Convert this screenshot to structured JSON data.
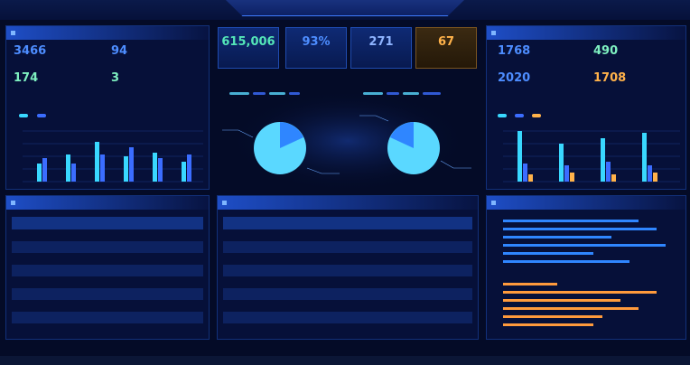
{
  "header": {
    "title": ""
  },
  "left_stats": {
    "title": "",
    "items": [
      {
        "label": "",
        "value": "3466",
        "color": "#4d8dff"
      },
      {
        "label": "",
        "value": "94",
        "color": "#4d8dff"
      },
      {
        "label": "",
        "value": "174",
        "color": "#7ef0c0"
      },
      {
        "label": "",
        "value": "3",
        "color": "#7ef0c0"
      }
    ]
  },
  "left_chart": {
    "legend": [
      "",
      ""
    ],
    "bar_colors": [
      "#39d8ff",
      "#3b6dff"
    ]
  },
  "kpis": [
    {
      "label": "",
      "value": "615,006",
      "color": "#54e6b8"
    },
    {
      "label": "",
      "value": "93%",
      "color": "#4d8dff"
    },
    {
      "label": "",
      "value": "271",
      "color": "#8fb4ff"
    },
    {
      "label": "",
      "value": "67",
      "color": "#ffb24a",
      "gold": true
    }
  ],
  "center_pies": [
    {
      "label": "",
      "slice_colors": [
        "#5ad8ff",
        "#2f86ff"
      ]
    },
    {
      "label": "",
      "slice_colors": [
        "#5ad8ff",
        "#2f86ff"
      ]
    }
  ],
  "right_stats": {
    "title": "",
    "items": [
      {
        "label": "",
        "value": "1768",
        "color": "#4d8dff"
      },
      {
        "label": "",
        "value": "490",
        "color": "#7ef0c0"
      },
      {
        "label": "",
        "value": "2020",
        "color": "#4d8dff"
      },
      {
        "label": "",
        "value": "1708",
        "color": "#ffb24a"
      }
    ]
  },
  "right_chart": {
    "legend": [
      "",
      "",
      ""
    ],
    "bar_colors": [
      "#39d8ff",
      "#3b6dff",
      "#ffb24a"
    ]
  },
  "left_table": {
    "title": "",
    "headers": [
      "",
      "",
      "",
      "",
      "",
      ""
    ],
    "rows": 8
  },
  "center_table": {
    "title": "",
    "headers": [
      "",
      "",
      "",
      "",
      "",
      "",
      ""
    ],
    "rows": 9
  },
  "right_hbars": {
    "title": "",
    "legend": [
      "",
      ""
    ],
    "colors": [
      "#2f86ff",
      "#ff9a3c"
    ]
  }
}
